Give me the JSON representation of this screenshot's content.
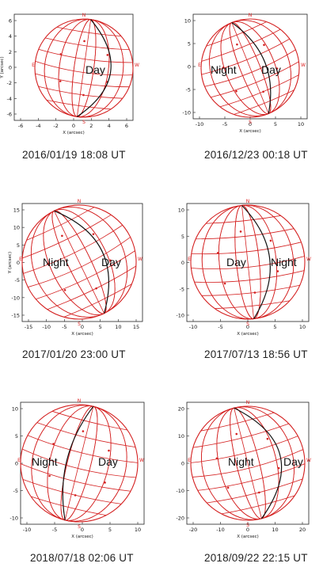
{
  "panels": [
    {
      "caption": "2016/01/19   18:08 UT",
      "xlabel": "X (arcsec)",
      "ylabel": "Y (arcsec)",
      "xticks": [
        "-6",
        "-4",
        "-2",
        "0",
        "2",
        "4",
        "6"
      ],
      "yticks": [
        "6",
        "4",
        "2",
        "0",
        "-2",
        "-4",
        "-6"
      ],
      "labels": [
        "Day"
      ],
      "north": "N",
      "south": "S",
      "east": "E",
      "west": "W"
    },
    {
      "caption": "2016/12/23   00:18 UT",
      "xlabel": "X (arcsec)",
      "ylabel": "",
      "xticks": [
        "-10",
        "-5",
        "0",
        "5",
        "10"
      ],
      "yticks": [
        "10",
        "5",
        "0",
        "-5",
        "-10"
      ],
      "labels": [
        "Night",
        "Day"
      ],
      "north": "N",
      "south": "S",
      "east": "E",
      "west": "W"
    },
    {
      "caption": "2017/01/20   23:00 UT",
      "xlabel": "X (arcsec)",
      "ylabel": "Y (arcsec)",
      "xticks": [
        "-15",
        "-10",
        "-5",
        "0",
        "5",
        "10",
        "15"
      ],
      "yticks": [
        "15",
        "10",
        "5",
        "0",
        "-5",
        "-10",
        "-15"
      ],
      "labels": [
        "Night",
        "Day"
      ],
      "north": "N",
      "south": "S",
      "east": "E",
      "west": "W"
    },
    {
      "caption": "2017/07/13   18:56 UT",
      "xlabel": "X (arcsec)",
      "ylabel": "",
      "xticks": [
        "-10",
        "-5",
        "0",
        "5",
        "10"
      ],
      "yticks": [
        "10",
        "5",
        "0",
        "-5",
        "-10"
      ],
      "labels": [
        "Day",
        "Night"
      ],
      "north": "N",
      "south": "S",
      "east": "E",
      "west": "W"
    },
    {
      "caption": "2018/07/18   02:06 UT",
      "xlabel": "X (arcsec)",
      "ylabel": "",
      "xticks": [
        "-10",
        "-5",
        "0",
        "5",
        "10"
      ],
      "yticks": [
        "10",
        "5",
        "0",
        "-5",
        "-10"
      ],
      "labels": [
        "Night",
        "Day"
      ],
      "north": "N",
      "south": "S",
      "east": "E",
      "west": "W"
    },
    {
      "caption": "2018/09/22   22:15 UT",
      "xlabel": "X (arcsec)",
      "ylabel": "",
      "xticks": [
        "-20",
        "-10",
        "0",
        "10",
        "20"
      ],
      "yticks": [
        "20",
        "10",
        "0",
        "-10",
        "-20"
      ],
      "labels": [
        "Night",
        "Day"
      ],
      "north": "N",
      "south": "S",
      "east": "E",
      "west": "W"
    }
  ]
}
